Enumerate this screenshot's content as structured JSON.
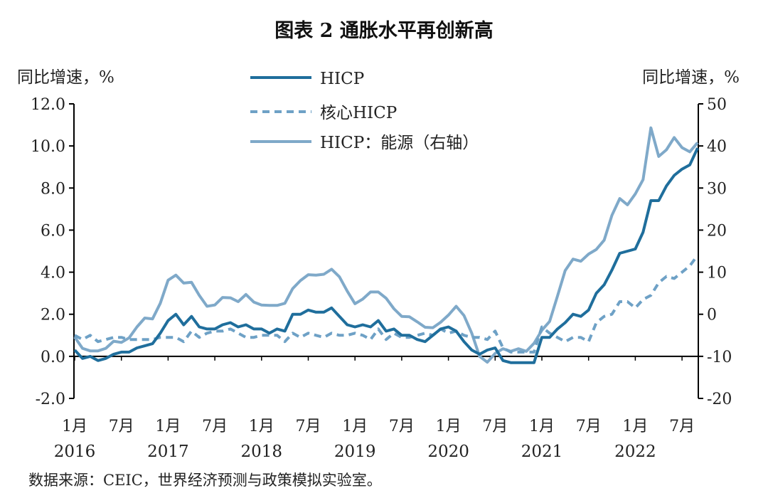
{
  "chart_data": {
    "type": "line",
    "title": "图表 2 通胀水平再创新高",
    "ylabel_left": "同比增速，%",
    "ylabel_right": "同比增速，%",
    "ylim_left": [
      -2,
      12
    ],
    "ylim_right": [
      -20,
      50
    ],
    "yticks_left": [
      "12.0",
      "10.0",
      "8.0",
      "6.0",
      "4.0",
      "2.0",
      "0.0",
      "-2.0"
    ],
    "yticks_right": [
      "50",
      "40",
      "30",
      "20",
      "10",
      "0",
      "-10",
      "-20"
    ],
    "x_month_labels": [
      "1月",
      "7月",
      "1月",
      "7月",
      "1月",
      "7月",
      "1月",
      "7月",
      "1月",
      "7月",
      "1月",
      "7月",
      "1月",
      "7月"
    ],
    "x_year_labels": [
      "2016",
      "2017",
      "2018",
      "2019",
      "2020",
      "2021",
      "2022"
    ],
    "x_start": "2016-01",
    "x_end": "2022-09",
    "source": "数据来源：CEIC，世界经济预测与政策模拟实验室。",
    "colors": {
      "hicp": "#1f6e9c",
      "core": "#6ea1c6",
      "energy": "#7fa9c9"
    },
    "series": [
      {
        "name": "HICP",
        "axis": "left",
        "style": "solid",
        "values": [
          0.3,
          -0.1,
          0.0,
          -0.2,
          -0.1,
          0.1,
          0.2,
          0.2,
          0.4,
          0.5,
          0.6,
          1.1,
          1.7,
          2.0,
          1.5,
          1.9,
          1.4,
          1.3,
          1.3,
          1.5,
          1.6,
          1.4,
          1.5,
          1.3,
          1.3,
          1.1,
          1.3,
          1.2,
          2.0,
          2.0,
          2.2,
          2.1,
          2.1,
          2.3,
          1.9,
          1.5,
          1.4,
          1.5,
          1.4,
          1.7,
          1.2,
          1.3,
          1.0,
          1.0,
          0.8,
          0.7,
          1.0,
          1.3,
          1.4,
          1.2,
          0.7,
          0.3,
          0.1,
          0.3,
          0.4,
          -0.2,
          -0.3,
          -0.3,
          -0.3,
          -0.3,
          0.9,
          0.9,
          1.3,
          1.6,
          2.0,
          1.9,
          2.2,
          3.0,
          3.4,
          4.1,
          4.9,
          5.0,
          5.1,
          5.9,
          7.4,
          7.4,
          8.1,
          8.6,
          8.9,
          9.1,
          9.9
        ]
      },
      {
        "name": "核心HICP",
        "axis": "left",
        "style": "dashed",
        "values": [
          1.0,
          0.8,
          1.0,
          0.7,
          0.8,
          0.9,
          0.9,
          0.8,
          0.8,
          0.8,
          0.8,
          0.9,
          0.9,
          0.9,
          0.7,
          1.2,
          0.9,
          1.1,
          1.2,
          1.2,
          1.3,
          1.1,
          0.9,
          0.9,
          1.0,
          1.0,
          1.0,
          0.7,
          1.1,
          0.9,
          1.1,
          1.0,
          0.9,
          1.1,
          1.0,
          1.0,
          1.1,
          1.0,
          0.8,
          1.3,
          0.8,
          1.1,
          0.9,
          0.9,
          1.0,
          1.1,
          1.0,
          1.3,
          1.1,
          1.2,
          1.0,
          0.9,
          0.9,
          0.8,
          1.2,
          0.4,
          0.2,
          0.2,
          0.2,
          0.2,
          1.4,
          1.1,
          0.9,
          0.7,
          0.9,
          0.9,
          0.7,
          1.6,
          1.9,
          2.0,
          2.6,
          2.6,
          2.3,
          2.7,
          2.9,
          3.5,
          3.8,
          3.7,
          4.0,
          4.3,
          4.8
        ]
      },
      {
        "name": "HICP：能源（右轴）",
        "axis": "right",
        "style": "solid",
        "values": [
          -5.4,
          -8.1,
          -8.7,
          -8.7,
          -8.1,
          -6.4,
          -6.7,
          -5.6,
          -3.0,
          -0.9,
          -1.1,
          2.6,
          8.1,
          9.3,
          7.4,
          7.6,
          4.5,
          1.9,
          2.2,
          4.0,
          3.9,
          3.0,
          4.7,
          2.9,
          2.2,
          2.1,
          2.1,
          2.6,
          6.1,
          8.0,
          9.4,
          9.3,
          9.5,
          10.7,
          8.9,
          5.5,
          2.5,
          3.6,
          5.3,
          5.3,
          3.8,
          1.3,
          -0.5,
          -0.6,
          -1.8,
          -3.1,
          -3.2,
          -1.9,
          -0.2,
          1.9,
          -0.3,
          -4.5,
          -10.0,
          -11.4,
          -9.3,
          -8.2,
          -8.8,
          -8.2,
          -8.8,
          -6.9,
          -3.8,
          -1.7,
          4.3,
          10.4,
          13.1,
          12.6,
          14.3,
          15.4,
          17.6,
          23.5,
          27.5,
          26.0,
          28.6,
          32.0,
          44.3,
          37.5,
          39.1,
          42.0,
          39.6,
          38.6,
          40.8
        ]
      }
    ],
    "legend": [
      "HICP",
      "核心HICP",
      "HICP：能源（右轴）"
    ]
  }
}
